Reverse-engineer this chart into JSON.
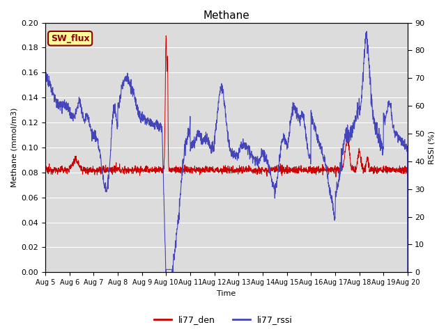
{
  "title": "Methane",
  "ylabel_left": "Methane (mmol/m3)",
  "ylabel_right": "RSSI (%)",
  "xlabel": "Time",
  "ylim_left": [
    0.0,
    0.2
  ],
  "ylim_right": [
    0,
    90
  ],
  "yticks_left": [
    0.0,
    0.02,
    0.04,
    0.06,
    0.08,
    0.1,
    0.12,
    0.14,
    0.16,
    0.18,
    0.2
  ],
  "yticks_right": [
    0,
    10,
    20,
    30,
    40,
    50,
    60,
    70,
    80,
    90
  ],
  "bg_color": "#dcdcdc",
  "fig_bg": "#ffffff",
  "annotation_text": "SW_flux",
  "annotation_bg": "#ffff99",
  "annotation_border": "#8b0000",
  "color_den": "#cc0000",
  "color_rssi": "#4444bb",
  "legend_labels": [
    "li77_den",
    "li77_rssi"
  ],
  "legend_colors": [
    "#cc0000",
    "#4444bb"
  ],
  "rssi_scale": 0.2,
  "rssi_max": 90
}
